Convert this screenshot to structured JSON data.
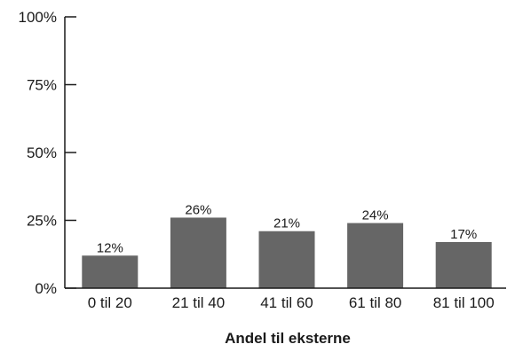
{
  "chart_data": {
    "type": "bar",
    "categories": [
      "0 til 20",
      "21 til 40",
      "41 til 60",
      "61 til 80",
      "81 til 100"
    ],
    "values": [
      12,
      26,
      21,
      24,
      17
    ],
    "data_labels": [
      "12%",
      "26%",
      "21%",
      "24%",
      "17%"
    ],
    "xlabel": "Andel til eksterne",
    "ylabel": "",
    "ylim": [
      0,
      100
    ],
    "yticks": [
      0,
      25,
      50,
      75,
      100
    ],
    "ytick_labels": [
      "0%",
      "25%",
      "50%",
      "75%",
      "100%"
    ],
    "grid": false,
    "bar_color": "#666666",
    "axis_color": "#1a1a1a"
  }
}
